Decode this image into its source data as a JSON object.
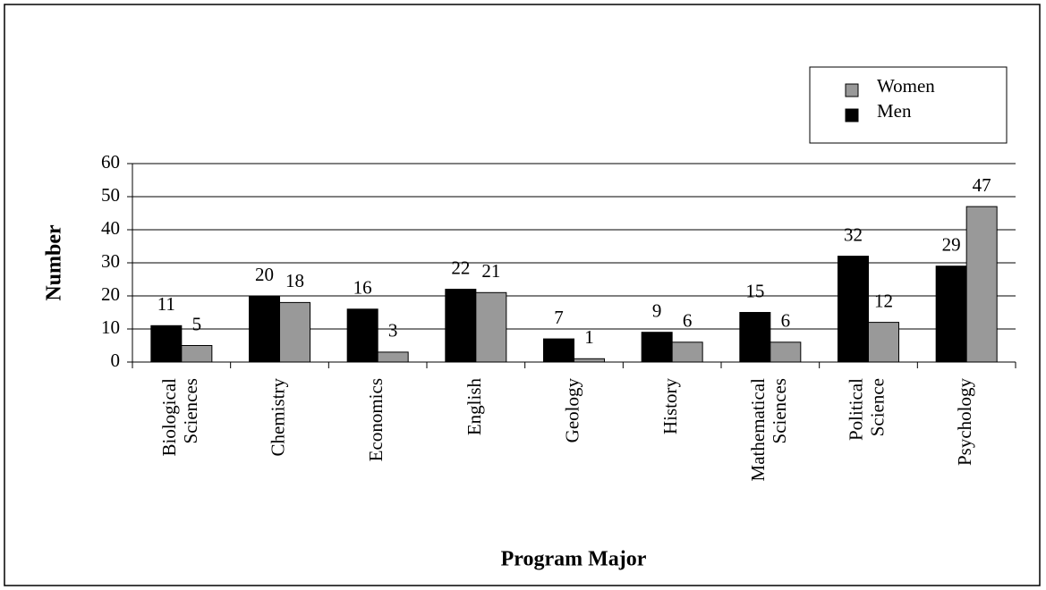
{
  "chart_data": {
    "type": "bar",
    "x_label": "Program Major",
    "y_label": "Number",
    "categories": [
      "Biological Sciences",
      "Chemistry",
      "Economics",
      "English",
      "Geology",
      "History",
      "Mathematical Sciences",
      "Political Science",
      "Psychology"
    ],
    "series": [
      {
        "name": "Men",
        "color": "#000000",
        "values": [
          11,
          20,
          16,
          22,
          7,
          9,
          15,
          32,
          29
        ]
      },
      {
        "name": "Women",
        "color": "#999999",
        "values": [
          5,
          18,
          3,
          21,
          1,
          6,
          6,
          12,
          47
        ]
      }
    ],
    "ylim": [
      0,
      60
    ],
    "yticks": [
      0,
      10,
      20,
      30,
      40,
      50,
      60
    ],
    "grid": true,
    "legend": "top-right"
  }
}
